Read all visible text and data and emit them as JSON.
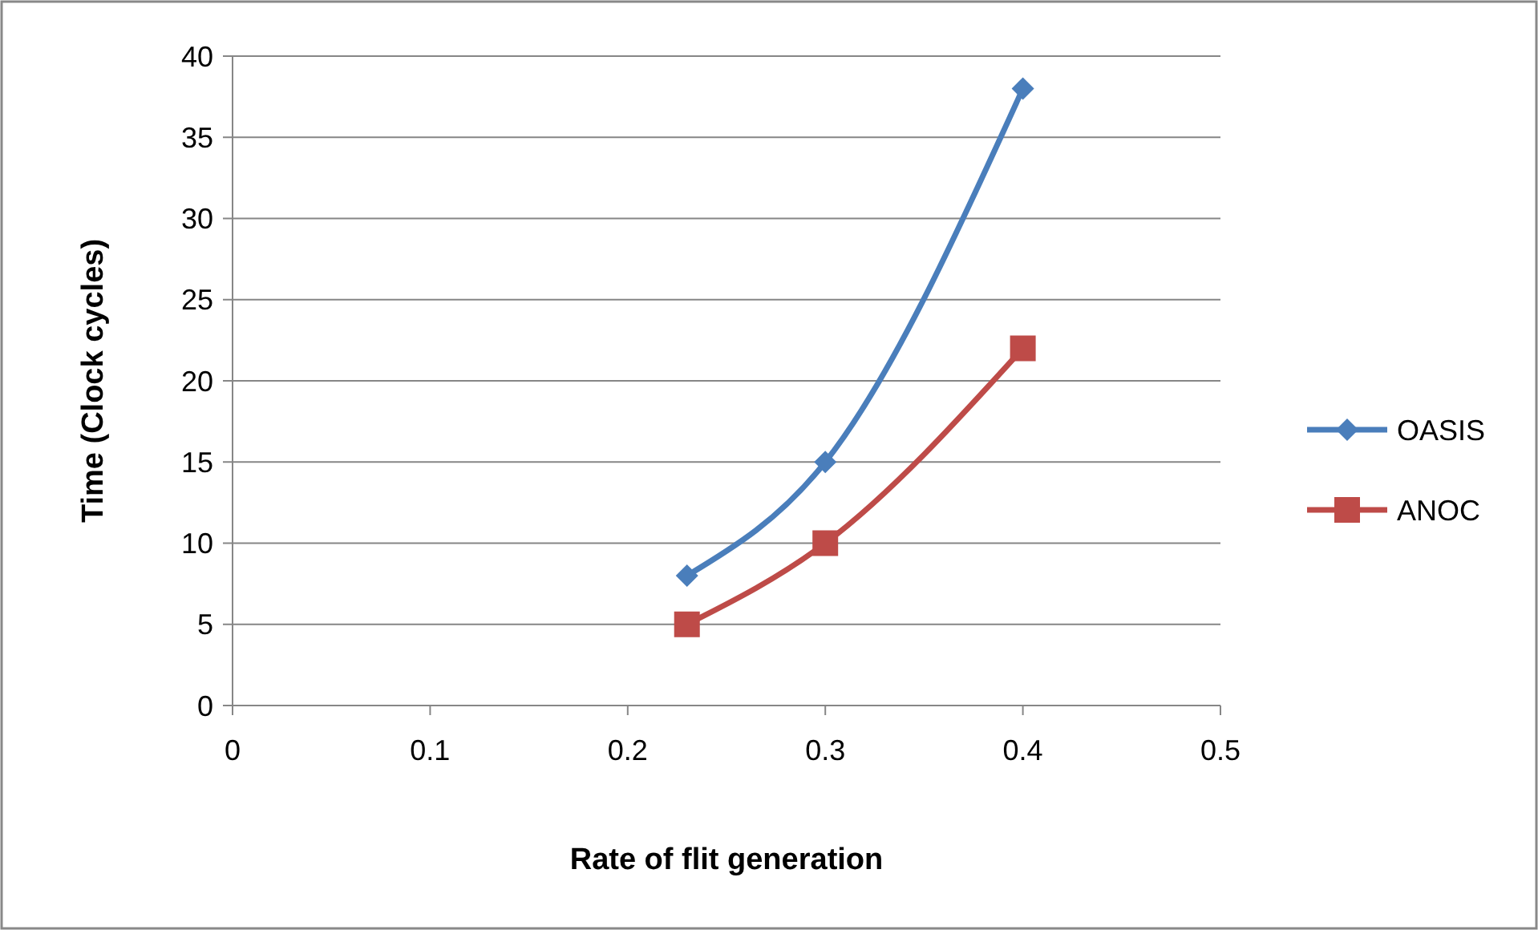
{
  "chart_data": {
    "type": "line",
    "xlabel": "Rate of flit generation",
    "ylabel": "Time (Clock cycles)",
    "x": [
      0.23,
      0.3,
      0.4
    ],
    "series": [
      {
        "name": "OASIS",
        "color": "#4a7ebb",
        "values": [
          8,
          15,
          38
        ],
        "marker": "diamond"
      },
      {
        "name": "ANOC",
        "color": "#be4b48",
        "values": [
          5,
          10,
          22
        ],
        "marker": "square"
      }
    ],
    "xlim": [
      0,
      0.5
    ],
    "xticks": [
      0,
      0.1,
      0.2,
      0.3,
      0.4,
      0.5
    ],
    "ylim": [
      0,
      40
    ],
    "yticks": [
      0,
      5,
      10,
      15,
      20,
      25,
      30,
      35,
      40
    ],
    "grid": "y",
    "legend": "right"
  }
}
